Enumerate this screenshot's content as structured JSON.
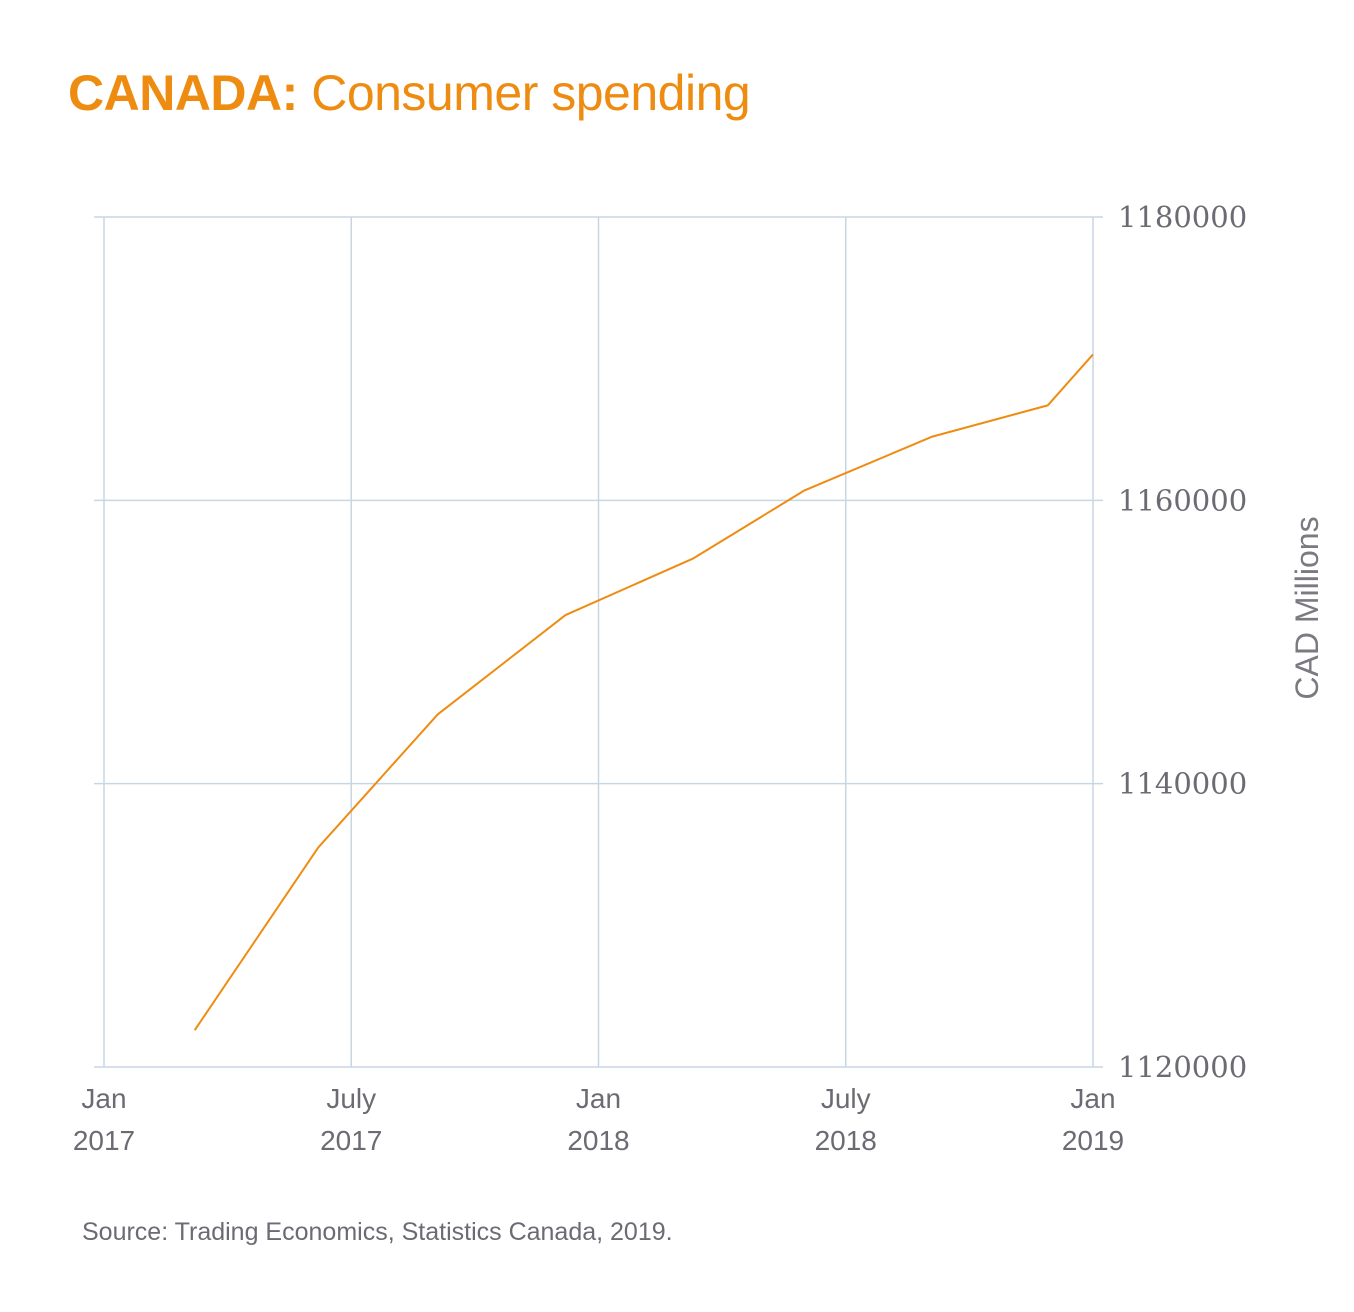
{
  "title": {
    "bold": "CANADA:",
    "rest": " Consumer spending"
  },
  "source": "Source: Trading Economics, Statistics Canada, 2019.",
  "colors": {
    "line": "#ee8c12",
    "title": "#ee8c12",
    "grid": "#c7d6e3",
    "text": "#6b6b73"
  },
  "chart_data": {
    "type": "line",
    "title": "CANADA: Consumer spending",
    "xlabel": "",
    "ylabel": "CAD Millions",
    "y_axis_side": "right",
    "ylim": [
      1120000,
      1180000
    ],
    "yticks": [
      1120000,
      1140000,
      1160000,
      1180000
    ],
    "ytick_labels": [
      "1120000",
      "1140000",
      "1160000",
      "1180000"
    ],
    "xlim_months": [
      0,
      24
    ],
    "xticks": [
      {
        "month": 0,
        "line1": "Jan",
        "line2": "2017"
      },
      {
        "month": 6,
        "line1": "July",
        "line2": "2017"
      },
      {
        "month": 12,
        "line1": "Jan",
        "line2": "2018"
      },
      {
        "month": 18,
        "line1": "July",
        "line2": "2018"
      },
      {
        "month": 24,
        "line1": "Jan",
        "line2": "2019"
      }
    ],
    "grid": true,
    "legend": "none",
    "series": [
      {
        "name": "Consumer spending",
        "x_months": [
          2.2,
          5.2,
          8.1,
          11.2,
          14.3,
          17.0,
          20.1,
          22.9,
          24.0
        ],
        "x_labels": [
          "Mar 2017",
          "Jun 2017",
          "Sep 2017",
          "Dec 2017",
          "Mar 2018",
          "Jun 2018",
          "Sep 2018",
          "Dec 2018",
          "Jan 2019"
        ],
        "values": [
          1122600,
          1135500,
          1144900,
          1151900,
          1155900,
          1160700,
          1164500,
          1166700,
          1170300
        ]
      }
    ]
  }
}
